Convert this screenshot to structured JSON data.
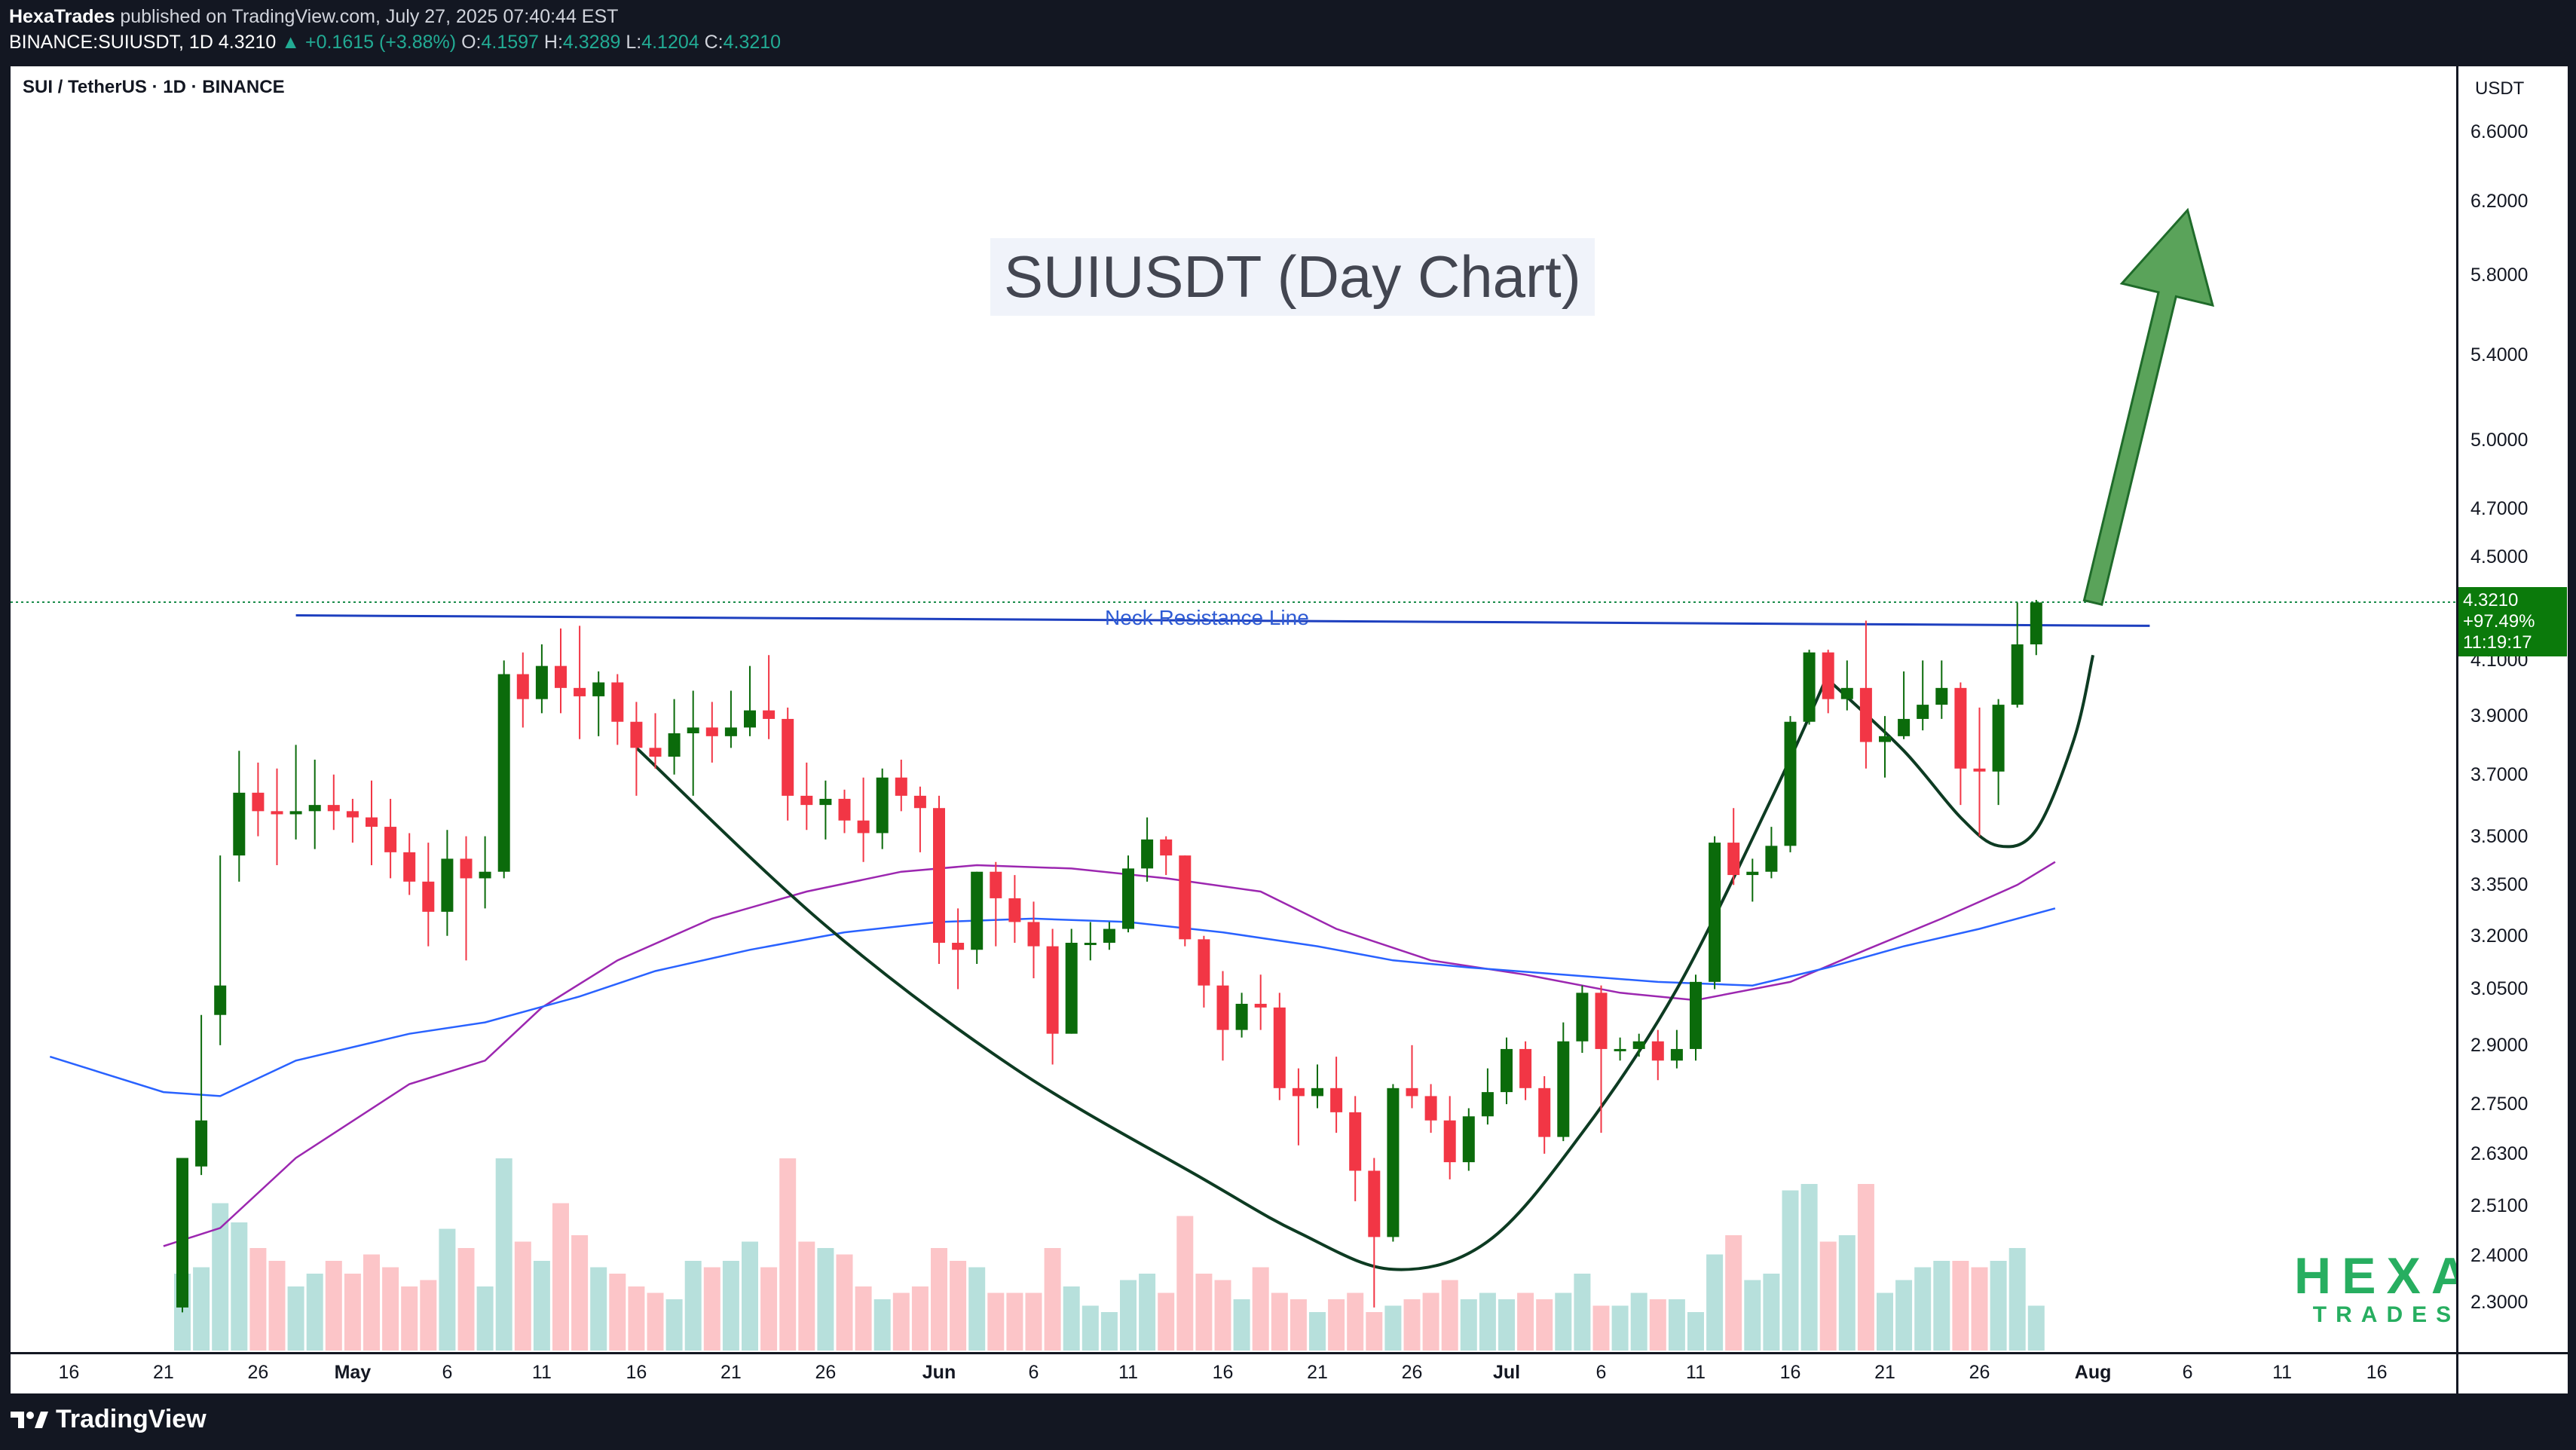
{
  "header": {
    "publisher": "HexaTrades",
    "published_text": "published on TradingView.com, July 27, 2025 07:40:44 EST",
    "symbol": "BINANCE:SUIUSDT, 1D",
    "last": "4.3210",
    "change": "+0.1615 (+3.88%)",
    "open_label": "O:",
    "open": "4.1597",
    "high_label": "H:",
    "high": "4.3289",
    "low_label": "L:",
    "low": "4.1204",
    "close_label": "C:",
    "close": "4.3210"
  },
  "chart_header": {
    "symbol_line": "SUI / TetherUS · 1D · BINANCE"
  },
  "annotations": {
    "title": "SUIUSDT (Day Chart)",
    "neck_label": "Neck Resistance Line",
    "brand_big": "HEXA",
    "brand_small": "TRADES"
  },
  "price_axis": {
    "currency": "USDT",
    "tag_price": "4.3210",
    "tag_change": "+97.49%",
    "tag_countdown": "11:19:17"
  },
  "footer": {
    "brand": "TradingView"
  },
  "colors": {
    "up": "#0b6b0b",
    "down": "#f23645",
    "ma_purple": "#9c27b0",
    "ma_blue": "#2962ff",
    "neck_line": "#1d3fbf",
    "arrow_fill": "#5aa35a",
    "vol_up": "#b7e0dc",
    "vol_down": "#fcc5c8",
    "last_price_line": "#1a8c4a"
  },
  "chart_data": {
    "type": "candlestick",
    "scale": "log",
    "ylim": [
      2.2,
      7.0
    ],
    "title": "SUIUSDT (Day Chart)",
    "price_ticks": [
      "6.6000",
      "6.2000",
      "5.8000",
      "5.4000",
      "5.0000",
      "4.7000",
      "4.5000",
      "4.1000",
      "3.9000",
      "3.7000",
      "3.5000",
      "3.3500",
      "3.2000",
      "3.0500",
      "2.9000",
      "2.7500",
      "2.6300",
      "2.5100",
      "2.4000",
      "2.3000"
    ],
    "time_ticks": [
      {
        "label": "16",
        "i": -6,
        "bold": false
      },
      {
        "label": "21",
        "i": -1,
        "bold": false
      },
      {
        "label": "26",
        "i": 4,
        "bold": false
      },
      {
        "label": "May",
        "i": 9,
        "bold": true
      },
      {
        "label": "6",
        "i": 14,
        "bold": false
      },
      {
        "label": "11",
        "i": 19,
        "bold": false
      },
      {
        "label": "16",
        "i": 24,
        "bold": false
      },
      {
        "label": "21",
        "i": 29,
        "bold": false
      },
      {
        "label": "26",
        "i": 34,
        "bold": false
      },
      {
        "label": "Jun",
        "i": 40,
        "bold": true
      },
      {
        "label": "6",
        "i": 45,
        "bold": false
      },
      {
        "label": "11",
        "i": 50,
        "bold": false
      },
      {
        "label": "16",
        "i": 55,
        "bold": false
      },
      {
        "label": "21",
        "i": 60,
        "bold": false
      },
      {
        "label": "26",
        "i": 65,
        "bold": false
      },
      {
        "label": "Jul",
        "i": 70,
        "bold": true
      },
      {
        "label": "6",
        "i": 75,
        "bold": false
      },
      {
        "label": "11",
        "i": 80,
        "bold": false
      },
      {
        "label": "16",
        "i": 85,
        "bold": false
      },
      {
        "label": "21",
        "i": 90,
        "bold": false
      },
      {
        "label": "26",
        "i": 95,
        "bold": false
      },
      {
        "label": "Aug",
        "i": 101,
        "bold": true
      },
      {
        "label": "6",
        "i": 106,
        "bold": false
      },
      {
        "label": "11",
        "i": 111,
        "bold": false
      },
      {
        "label": "16",
        "i": 116,
        "bold": false
      }
    ],
    "candles": [
      [
        2.29,
        2.62,
        2.28,
        2.6,
        1.2
      ],
      [
        2.6,
        2.71,
        2.58,
        2.98,
        1.3
      ],
      [
        2.98,
        3.06,
        2.9,
        3.44,
        2.3
      ],
      [
        3.44,
        3.64,
        3.36,
        3.78,
        2.0
      ],
      [
        3.64,
        3.58,
        3.5,
        3.74,
        1.6
      ],
      [
        3.58,
        3.57,
        3.41,
        3.72,
        1.4
      ],
      [
        3.57,
        3.58,
        3.49,
        3.8,
        1.0
      ],
      [
        3.58,
        3.6,
        3.46,
        3.75,
        1.2
      ],
      [
        3.6,
        3.58,
        3.52,
        3.7,
        1.4
      ],
      [
        3.58,
        3.56,
        3.48,
        3.62,
        1.2
      ],
      [
        3.56,
        3.53,
        3.41,
        3.68,
        1.5
      ],
      [
        3.53,
        3.45,
        3.37,
        3.62,
        1.3
      ],
      [
        3.45,
        3.36,
        3.32,
        3.51,
        1.0
      ],
      [
        3.36,
        3.27,
        3.17,
        3.48,
        1.1
      ],
      [
        3.27,
        3.43,
        3.2,
        3.52,
        1.9
      ],
      [
        3.43,
        3.37,
        3.13,
        3.5,
        1.6
      ],
      [
        3.37,
        3.39,
        3.28,
        3.5,
        1.0
      ],
      [
        3.39,
        4.05,
        3.37,
        4.1,
        3.0
      ],
      [
        4.05,
        3.96,
        3.86,
        4.13,
        1.7
      ],
      [
        3.96,
        4.08,
        3.91,
        4.16,
        1.4
      ],
      [
        4.08,
        4.0,
        3.91,
        4.22,
        2.3
      ],
      [
        4.0,
        3.97,
        3.82,
        4.23,
        1.8
      ],
      [
        3.97,
        4.02,
        3.83,
        4.06,
        1.3
      ],
      [
        4.02,
        3.88,
        3.8,
        4.05,
        1.2
      ],
      [
        3.88,
        3.79,
        3.63,
        3.95,
        1.0
      ],
      [
        3.79,
        3.76,
        3.72,
        3.91,
        0.9
      ],
      [
        3.76,
        3.84,
        3.7,
        3.96,
        0.8
      ],
      [
        3.84,
        3.86,
        3.63,
        3.99,
        1.4
      ],
      [
        3.86,
        3.83,
        3.74,
        3.95,
        1.3
      ],
      [
        3.83,
        3.86,
        3.79,
        3.99,
        1.4
      ],
      [
        3.86,
        3.92,
        3.83,
        4.08,
        1.7
      ],
      [
        3.92,
        3.89,
        3.82,
        4.12,
        1.3
      ],
      [
        3.89,
        3.63,
        3.55,
        3.93,
        3.0
      ],
      [
        3.63,
        3.6,
        3.52,
        3.74,
        1.7
      ],
      [
        3.6,
        3.62,
        3.49,
        3.68,
        1.6
      ],
      [
        3.62,
        3.55,
        3.51,
        3.65,
        1.5
      ],
      [
        3.55,
        3.51,
        3.42,
        3.69,
        1.0
      ],
      [
        3.51,
        3.69,
        3.46,
        3.72,
        0.8
      ],
      [
        3.69,
        3.63,
        3.58,
        3.75,
        0.9
      ],
      [
        3.63,
        3.59,
        3.45,
        3.66,
        1.0
      ],
      [
        3.59,
        3.18,
        3.12,
        3.63,
        1.6
      ],
      [
        3.18,
        3.16,
        3.05,
        3.28,
        1.4
      ],
      [
        3.16,
        3.39,
        3.12,
        3.39,
        1.3
      ],
      [
        3.39,
        3.31,
        3.17,
        3.42,
        0.9
      ],
      [
        3.31,
        3.24,
        3.18,
        3.38,
        0.9
      ],
      [
        3.24,
        3.17,
        3.08,
        3.3,
        0.9
      ],
      [
        3.17,
        2.93,
        2.85,
        3.22,
        1.6
      ],
      [
        2.93,
        3.18,
        2.93,
        3.22,
        1.0
      ],
      [
        3.18,
        3.18,
        3.13,
        3.24,
        0.7
      ],
      [
        3.18,
        3.22,
        3.16,
        3.24,
        0.6
      ],
      [
        3.22,
        3.4,
        3.21,
        3.44,
        1.1
      ],
      [
        3.4,
        3.49,
        3.36,
        3.56,
        1.2
      ],
      [
        3.49,
        3.44,
        3.38,
        3.5,
        0.9
      ],
      [
        3.44,
        3.19,
        3.17,
        3.44,
        2.1
      ],
      [
        3.19,
        3.06,
        3.0,
        3.2,
        1.2
      ],
      [
        3.06,
        2.94,
        2.86,
        3.1,
        1.1
      ],
      [
        2.94,
        3.01,
        2.92,
        3.04,
        0.8
      ],
      [
        3.01,
        3.0,
        2.94,
        3.09,
        1.3
      ],
      [
        3.0,
        2.79,
        2.76,
        3.04,
        0.9
      ],
      [
        2.79,
        2.77,
        2.65,
        2.84,
        0.8
      ],
      [
        2.77,
        2.79,
        2.74,
        2.85,
        0.6
      ],
      [
        2.79,
        2.73,
        2.68,
        2.87,
        0.8
      ],
      [
        2.73,
        2.59,
        2.52,
        2.77,
        0.9
      ],
      [
        2.59,
        2.44,
        2.29,
        2.62,
        0.6
      ],
      [
        2.44,
        2.79,
        2.43,
        2.8,
        0.7
      ],
      [
        2.79,
        2.77,
        2.74,
        2.9,
        0.8
      ],
      [
        2.77,
        2.71,
        2.68,
        2.8,
        0.9
      ],
      [
        2.71,
        2.61,
        2.57,
        2.77,
        1.1
      ],
      [
        2.61,
        2.72,
        2.59,
        2.74,
        0.8
      ],
      [
        2.72,
        2.78,
        2.7,
        2.84,
        0.9
      ],
      [
        2.78,
        2.89,
        2.75,
        2.92,
        0.8
      ],
      [
        2.89,
        2.79,
        2.76,
        2.91,
        0.9
      ],
      [
        2.79,
        2.67,
        2.63,
        2.82,
        0.8
      ],
      [
        2.67,
        2.91,
        2.66,
        2.96,
        0.9
      ],
      [
        2.91,
        3.04,
        2.88,
        3.06,
        1.2
      ],
      [
        3.04,
        2.89,
        2.68,
        3.06,
        0.7
      ],
      [
        2.89,
        2.89,
        2.86,
        2.92,
        0.7
      ],
      [
        2.89,
        2.91,
        2.87,
        2.93,
        0.9
      ],
      [
        2.91,
        2.86,
        2.81,
        2.94,
        0.8
      ],
      [
        2.86,
        2.89,
        2.84,
        2.94,
        0.8
      ],
      [
        2.89,
        3.07,
        2.86,
        3.09,
        0.6
      ],
      [
        3.07,
        3.48,
        3.05,
        3.5,
        1.5
      ],
      [
        3.48,
        3.38,
        3.35,
        3.59,
        1.8
      ],
      [
        3.38,
        3.39,
        3.3,
        3.43,
        1.1
      ],
      [
        3.39,
        3.47,
        3.37,
        3.53,
        1.2
      ],
      [
        3.47,
        3.88,
        3.45,
        3.9,
        2.5
      ],
      [
        3.88,
        4.13,
        3.87,
        4.14,
        2.6
      ],
      [
        4.13,
        3.96,
        3.91,
        4.14,
        1.7
      ],
      [
        3.96,
        4.0,
        3.92,
        4.1,
        1.8
      ],
      [
        4.0,
        3.81,
        3.72,
        4.25,
        2.6
      ],
      [
        3.81,
        3.83,
        3.69,
        3.9,
        0.9
      ],
      [
        3.83,
        3.89,
        3.82,
        4.06,
        1.1
      ],
      [
        3.89,
        3.94,
        3.85,
        4.1,
        1.3
      ],
      [
        3.94,
        4.0,
        3.89,
        4.1,
        1.4
      ],
      [
        4.0,
        3.72,
        3.6,
        4.02,
        1.4
      ],
      [
        3.72,
        3.71,
        3.5,
        3.93,
        1.3
      ],
      [
        3.71,
        3.94,
        3.6,
        3.96,
        1.4
      ],
      [
        3.94,
        4.16,
        3.93,
        4.32,
        1.6
      ],
      [
        4.16,
        4.32,
        4.12,
        4.33,
        0.7
      ]
    ],
    "ma_purple": [
      [
        -1,
        2.42
      ],
      [
        2,
        2.46
      ],
      [
        6,
        2.62
      ],
      [
        12,
        2.8
      ],
      [
        16,
        2.86
      ],
      [
        19,
        3.0
      ],
      [
        23,
        3.13
      ],
      [
        28,
        3.25
      ],
      [
        33,
        3.33
      ],
      [
        38,
        3.39
      ],
      [
        42,
        3.41
      ],
      [
        47,
        3.4
      ],
      [
        52,
        3.37
      ],
      [
        57,
        3.33
      ],
      [
        61,
        3.22
      ],
      [
        66,
        3.13
      ],
      [
        71,
        3.09
      ],
      [
        76,
        3.04
      ],
      [
        80,
        3.02
      ],
      [
        85,
        3.07
      ],
      [
        89,
        3.16
      ],
      [
        93,
        3.25
      ],
      [
        97,
        3.35
      ],
      [
        99,
        3.42
      ]
    ],
    "ma_blue": [
      [
        -7,
        2.87
      ],
      [
        -1,
        2.78
      ],
      [
        2,
        2.77
      ],
      [
        6,
        2.86
      ],
      [
        12,
        2.93
      ],
      [
        16,
        2.96
      ],
      [
        21,
        3.03
      ],
      [
        25,
        3.1
      ],
      [
        30,
        3.16
      ],
      [
        35,
        3.21
      ],
      [
        40,
        3.24
      ],
      [
        45,
        3.25
      ],
      [
        50,
        3.24
      ],
      [
        55,
        3.21
      ],
      [
        60,
        3.17
      ],
      [
        64,
        3.13
      ],
      [
        68,
        3.11
      ],
      [
        73,
        3.09
      ],
      [
        78,
        3.07
      ],
      [
        83,
        3.06
      ],
      [
        87,
        3.11
      ],
      [
        91,
        3.17
      ],
      [
        95,
        3.22
      ],
      [
        99,
        3.28
      ]
    ],
    "neck_line": {
      "from": [
        6,
        4.27
      ],
      "to": [
        104,
        4.23
      ]
    },
    "cup_curve": [
      [
        24,
        3.79
      ],
      [
        34,
        3.23
      ],
      [
        44,
        2.84
      ],
      [
        54,
        2.57
      ],
      [
        59,
        2.45
      ],
      [
        64,
        2.37
      ],
      [
        69,
        2.43
      ],
      [
        74,
        2.68
      ],
      [
        79,
        3.05
      ],
      [
        84,
        3.62
      ],
      [
        87,
        4.05
      ]
    ],
    "handle_curve": [
      [
        87,
        4.03
      ],
      [
        91,
        3.78
      ],
      [
        94,
        3.56
      ],
      [
        96,
        3.47
      ],
      [
        98,
        3.52
      ],
      [
        100,
        3.82
      ],
      [
        101,
        4.12
      ]
    ],
    "arrow": {
      "tail": [
        101,
        4.32
      ],
      "head": [
        106,
        6.15
      ]
    },
    "last_price_line": 4.321
  }
}
